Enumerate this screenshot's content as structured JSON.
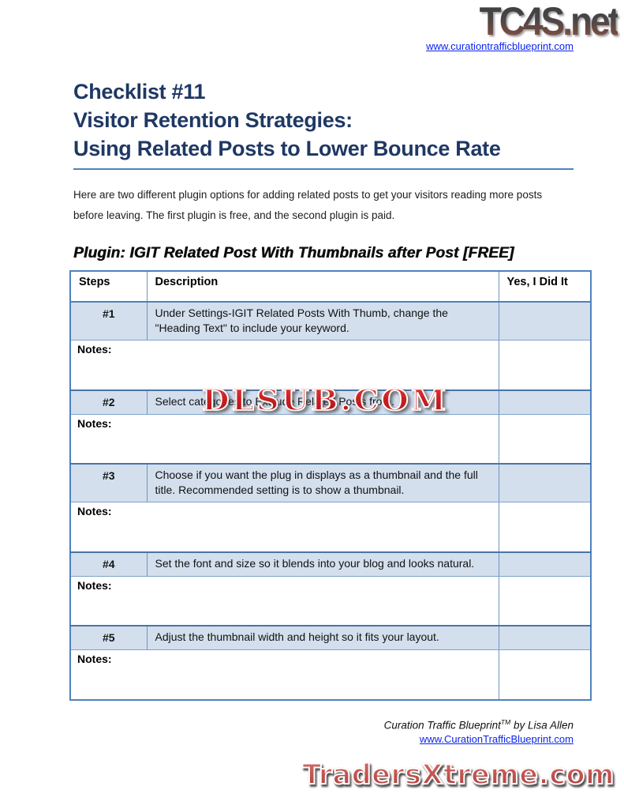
{
  "header": {
    "logo_text": "TC4S.net",
    "site_link": "www.curationtrafficblueprint.com"
  },
  "title": {
    "line1": "Checklist #11",
    "line2": "Visitor Retention Strategies:",
    "line3": "Using Related Posts to Lower Bounce Rate"
  },
  "intro_text": "Here are two different plugin options for adding related posts to get your visitors reading more posts before leaving. The first plugin is free, and the second plugin is paid.",
  "section_heading": "Plugin: IGIT Related Post With Thumbnails after Post [FREE]",
  "table": {
    "headers": [
      "Steps",
      "Description",
      "Yes, I Did It"
    ],
    "notes_label": "Notes:",
    "rows": [
      {
        "step": "#1",
        "description": "Under Settings-IGIT Related Posts With Thumb, change the \"Heading Text\" to include your keyword."
      },
      {
        "step": "#2",
        "description": "Select categories to Exclude Related Posts from."
      },
      {
        "step": "#3",
        "description": "Choose if you want the plug in displays as a thumbnail and the full title.  Recommended setting is to show a thumbnail."
      },
      {
        "step": "#4",
        "description": "Set the font and size so it blends into your blog and looks natural."
      },
      {
        "step": "#5",
        "description": "Adjust the thumbnail width and height so it fits your layout."
      }
    ]
  },
  "watermark_text": "DLSUB.COM",
  "footer": {
    "credit_name": "Curation Traffic Blueprint",
    "credit_tm": "TM",
    "credit_suffix": " by Lisa Allen",
    "site_link": "www.CurationTrafficBlueprint.com",
    "bottom_logo_text": "TradersXtreme.com"
  },
  "colors": {
    "title_navy": "#1f3864",
    "rule_blue": "#4f81bd",
    "table_border_blue": "#6e94c4",
    "step_row_bg": "#d3dfed",
    "watermark_red": "#c41f1f",
    "bottom_logo_red": "#c0504d",
    "link_blue": "#0b24ee"
  }
}
